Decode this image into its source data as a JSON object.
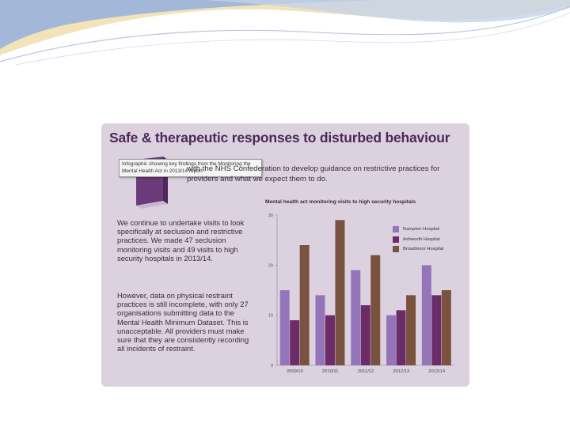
{
  "slide": {
    "colors": {
      "background": "#ffffff",
      "swoosh_blue": "#8fa8cf",
      "swoosh_gold": "#f2e3b8"
    }
  },
  "infographic": {
    "title": "Safe & therapeutic responses to disturbed behaviour",
    "tooltip": "Infographic showing key findings from the Monitoring the Mental Health Act in 2013/14 report",
    "intro": "with the NHS Confederation to develop guidance on restrictive practices for providers and what we expect them to do.",
    "paragraph1": "We continue to undertake visits to look specifically at seclusion and restrictive practices. We made 47 seclusion monitoring visits and 49 visits to high security hospitals in 2013/14.",
    "paragraph2": "However, data on physical restraint practices is still incomplete, with only 27 organisations submitting data to the Mental Health Minimum Dataset. This is unacceptable. All providers must make sure that they are consistently recording all incidents of restraint.",
    "icon": "book-icon",
    "colors": {
      "card_bg": "#dcd2df",
      "title": "#4b2a55"
    }
  },
  "chart_data": {
    "type": "bar",
    "title": "Mental health act monitoring visits to high security hospitals",
    "categories": [
      "2009/10",
      "2010/11",
      "2011/12",
      "2012/13",
      "2013/14"
    ],
    "series": [
      {
        "name": "Rampton Hospital",
        "color": "#9575b9",
        "values": [
          15,
          14,
          19,
          10,
          20
        ]
      },
      {
        "name": "Ashworth Hospital",
        "color": "#6b2c68",
        "values": [
          9,
          10,
          12,
          11,
          14
        ]
      },
      {
        "name": "Broadmoor Hospital",
        "color": "#7a5240",
        "values": [
          24,
          29,
          22,
          14,
          15
        ]
      }
    ],
    "yticks": [
      "0",
      "10",
      "20",
      "30"
    ],
    "ylim": [
      0,
      30
    ],
    "grid": false,
    "legend": "top-right"
  }
}
